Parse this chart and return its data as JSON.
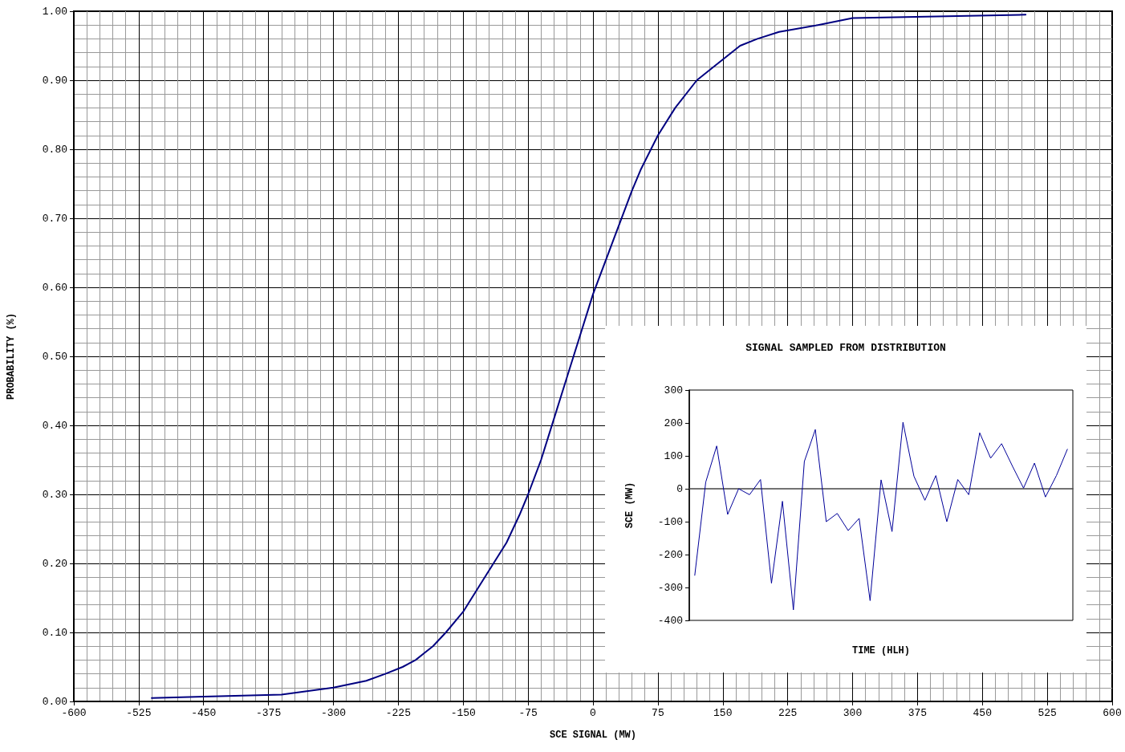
{
  "chart_data": [
    {
      "type": "line",
      "xlabel": "SCE SIGNAL (MW)",
      "ylabel": "PROBABILITY (%)",
      "x": [
        -510,
        -450,
        -360,
        -300,
        -262,
        -240,
        -220,
        -205,
        -195,
        -185,
        -170,
        -150,
        -130,
        -115,
        -100,
        -85,
        -75,
        -60,
        -45,
        -30,
        -15,
        0,
        15,
        30,
        45,
        55,
        75,
        95,
        120,
        140,
        170,
        190,
        215,
        260,
        300,
        500
      ],
      "series": [
        {
          "color": "#000080",
          "values": [
            0.005,
            0.007,
            0.01,
            0.02,
            0.03,
            0.04,
            0.05,
            0.06,
            0.07,
            0.08,
            0.1,
            0.13,
            0.17,
            0.2,
            0.23,
            0.27,
            0.3,
            0.35,
            0.41,
            0.47,
            0.53,
            0.59,
            0.64,
            0.69,
            0.74,
            0.77,
            0.82,
            0.86,
            0.9,
            0.92,
            0.95,
            0.96,
            0.97,
            0.98,
            0.99,
            0.995
          ]
        }
      ],
      "xlim": [
        -600,
        600
      ],
      "xticks": [
        -600,
        -525,
        -450,
        -375,
        -300,
        -225,
        -150,
        -75,
        0,
        75,
        150,
        225,
        300,
        375,
        450,
        525,
        600
      ],
      "ylim": [
        0,
        1
      ],
      "yticks": [
        {
          "value": 0,
          "label": "0.00"
        },
        {
          "value": 0.1,
          "label": "0.10"
        },
        {
          "value": 0.2,
          "label": "0.20"
        },
        {
          "value": 0.3,
          "label": "0.30"
        },
        {
          "value": 0.4,
          "label": "0.40"
        },
        {
          "value": 0.5,
          "label": "0.50"
        },
        {
          "value": 0.6,
          "label": "0.60"
        },
        {
          "value": 0.7,
          "label": "0.70"
        },
        {
          "value": 0.8,
          "label": "0.80"
        },
        {
          "value": 0.9,
          "label": "0.90"
        },
        {
          "value": 1,
          "label": "1.00"
        }
      ],
      "grid": true,
      "marker": "none",
      "line_style": "solid"
    },
    {
      "type": "line",
      "title": "SIGNAL SAMPLED FROM DISTRIBUTION",
      "xlabel": "TIME (HLH)",
      "ylabel": "SCE (MW)",
      "categories": [
        null,
        null,
        null,
        null,
        null,
        null,
        null,
        null,
        null,
        null,
        null,
        null,
        null,
        null,
        null,
        null,
        null,
        null,
        null,
        null,
        null,
        null,
        null,
        null,
        null,
        null,
        null,
        null,
        null,
        null,
        null,
        null,
        null,
        null,
        null
      ],
      "series": [
        {
          "color": "#000099",
          "values": [
            -263,
            20,
            130,
            -78,
            0,
            -18,
            28,
            -287,
            -38,
            -368,
            83,
            180,
            -100,
            -75,
            -127,
            -90,
            -340,
            27,
            -130,
            202,
            38,
            -35,
            40,
            -100,
            28,
            -18,
            170,
            93,
            137,
            68,
            2,
            78,
            -25,
            40,
            120
          ]
        }
      ],
      "ylim": [
        -400,
        300
      ],
      "yticks": [
        -400,
        -300,
        -200,
        -100,
        0,
        100,
        200,
        300
      ],
      "tick_labels": "y",
      "marker": "none",
      "line_style": "solid"
    }
  ]
}
